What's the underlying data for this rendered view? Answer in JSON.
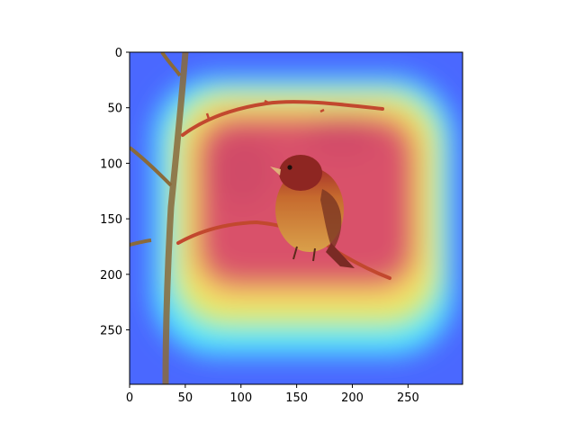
{
  "image": {
    "subject": "bird-on-branch",
    "overlay": "attention-heatmap",
    "colors": {
      "cold": "#3a4dff",
      "mid": "#4ee6ff",
      "warm": "#f7e36a",
      "hot": "#d9516a"
    }
  },
  "axes": {
    "x_range": [
      0,
      299
    ],
    "y_range": [
      0,
      299
    ],
    "x_ticks": [
      {
        "value": 0,
        "label": "0"
      },
      {
        "value": 50,
        "label": "50"
      },
      {
        "value": 100,
        "label": "100"
      },
      {
        "value": 150,
        "label": "150"
      },
      {
        "value": 200,
        "label": "200"
      },
      {
        "value": 250,
        "label": "250"
      }
    ],
    "y_ticks": [
      {
        "value": 0,
        "label": "0"
      },
      {
        "value": 50,
        "label": "50"
      },
      {
        "value": 100,
        "label": "100"
      },
      {
        "value": 150,
        "label": "150"
      },
      {
        "value": 200,
        "label": "200"
      },
      {
        "value": 250,
        "label": "250"
      }
    ]
  }
}
